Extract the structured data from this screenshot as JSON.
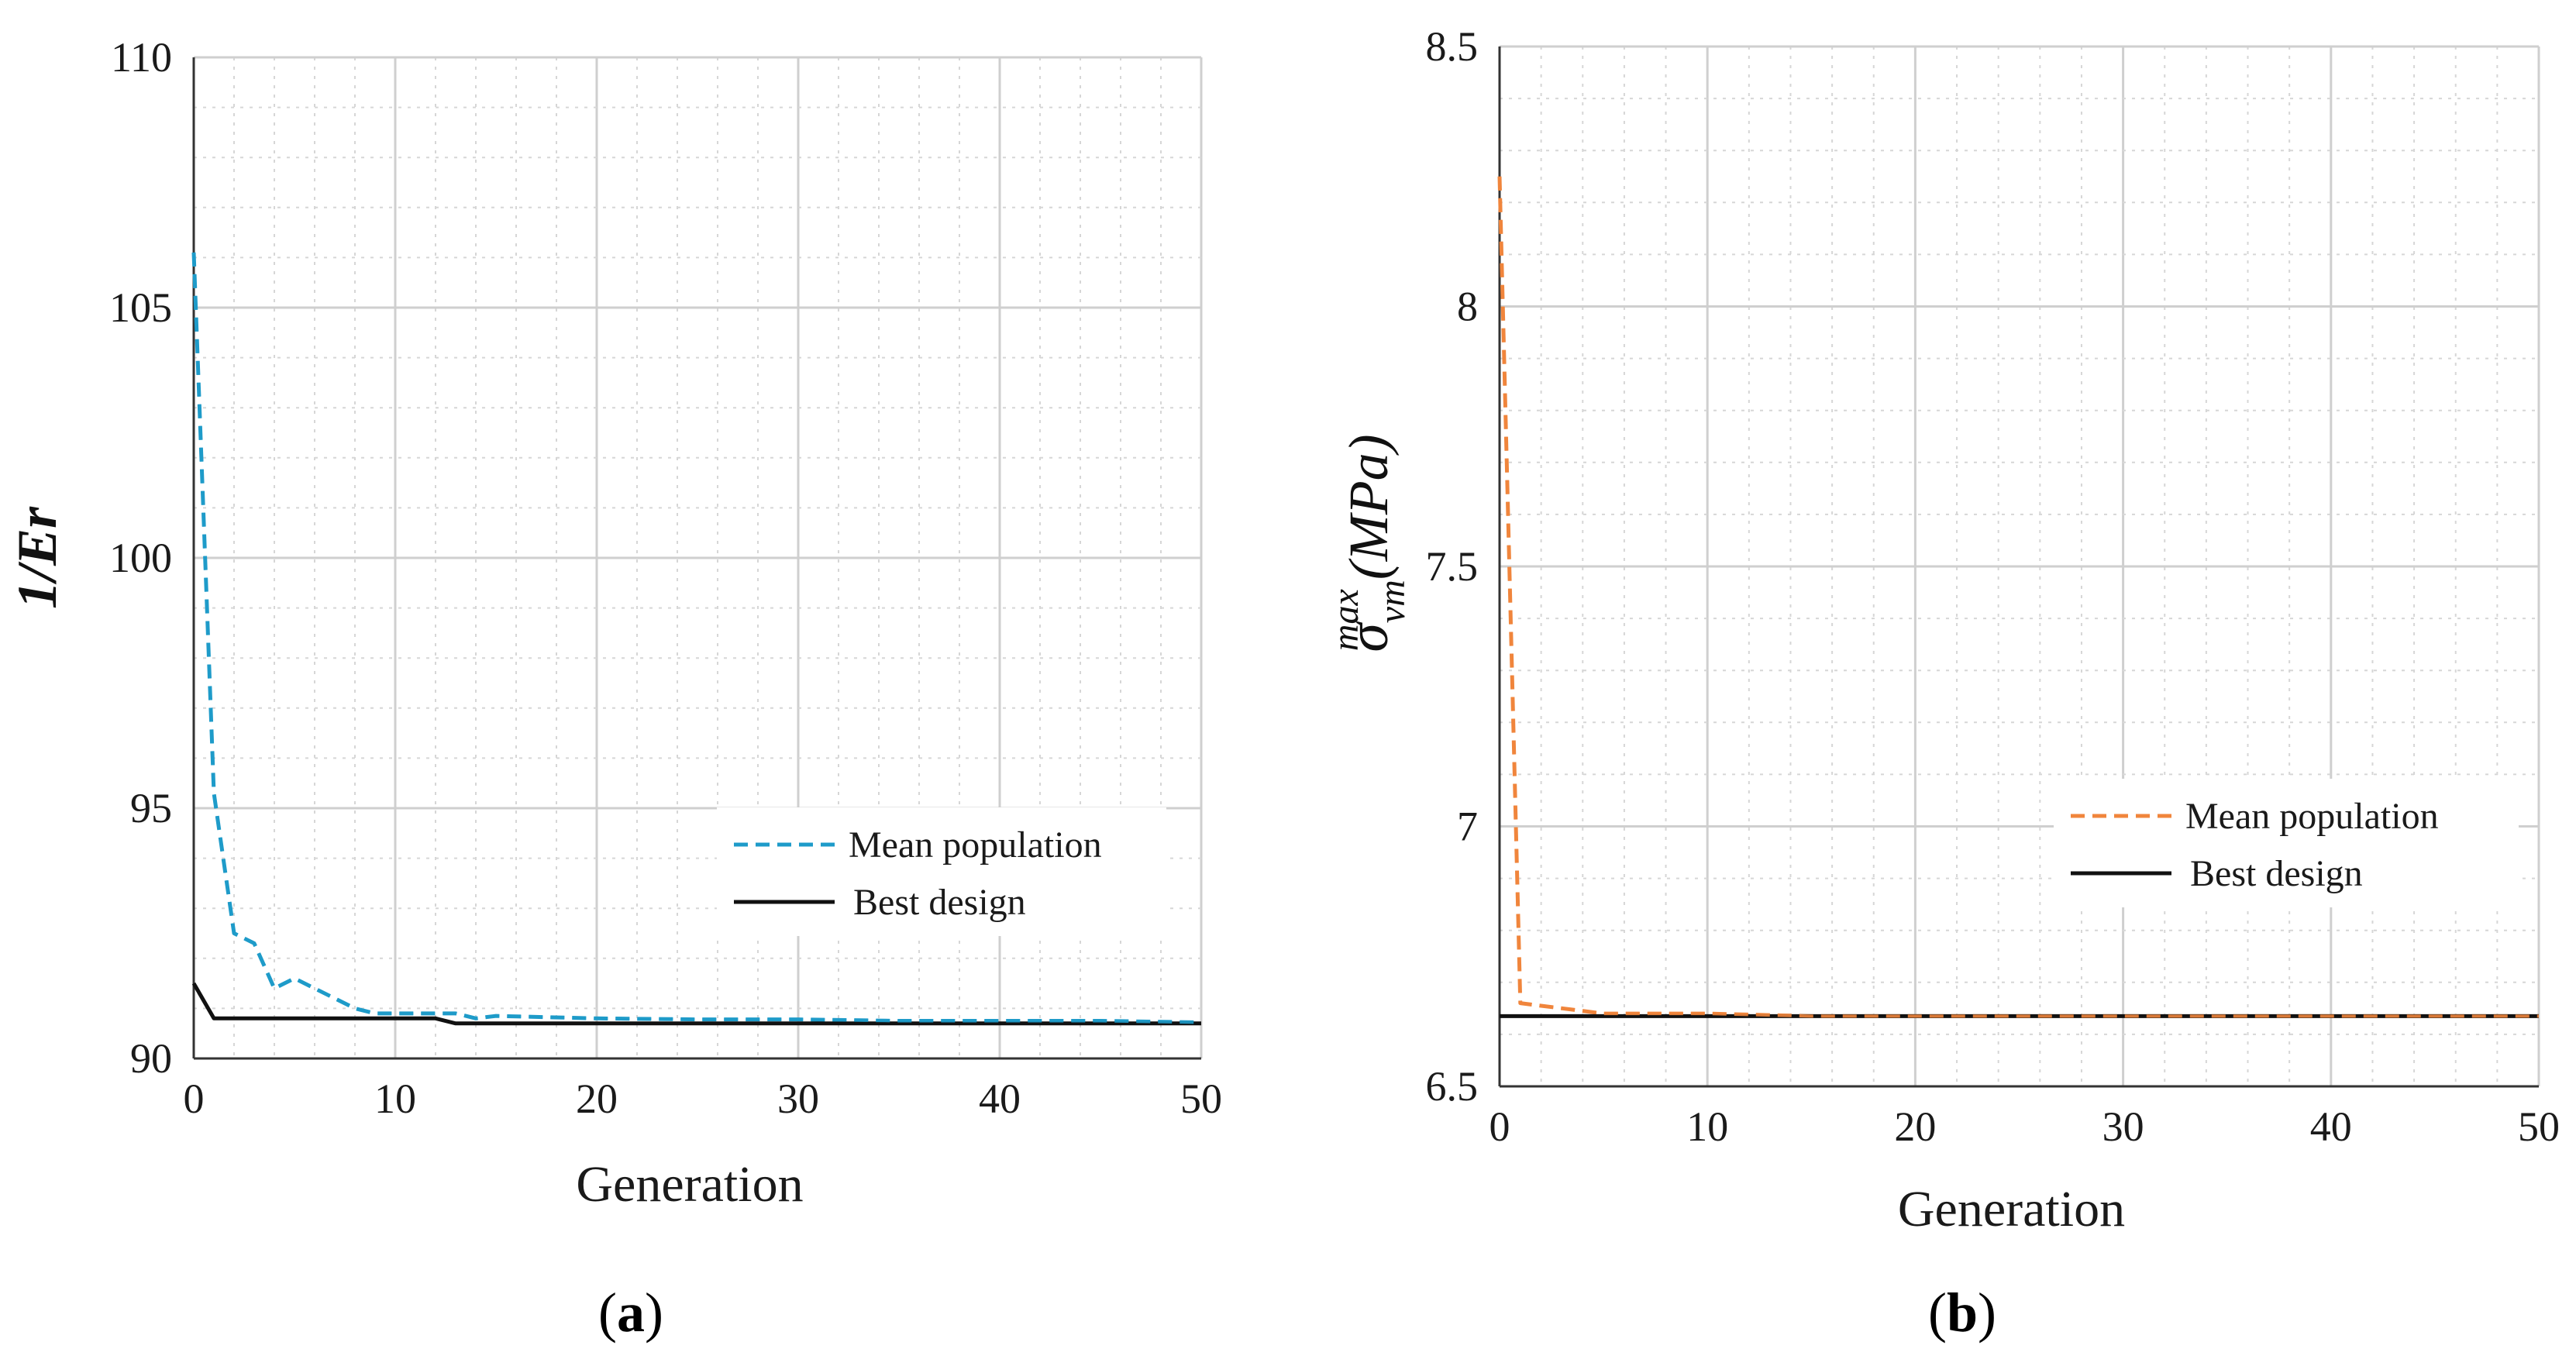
{
  "chart_data": [
    {
      "type": "line",
      "panel_label": "(a)",
      "panel_letter": "a",
      "xlabel": "Generation",
      "ylabel": "1/Er",
      "xlim": [
        0,
        50
      ],
      "ylim": [
        90,
        110
      ],
      "xticks": [
        0,
        10,
        20,
        30,
        40,
        50
      ],
      "yticks": [
        90,
        95,
        100,
        105,
        110
      ],
      "grid": true,
      "legend_position": "center-right",
      "series": [
        {
          "name": "Mean population",
          "color": "#1e9bc9",
          "style": "dashed",
          "x": [
            0,
            1,
            2,
            3,
            4,
            5,
            6,
            7,
            8,
            9,
            10,
            11,
            12,
            13,
            14,
            15,
            20,
            25,
            30,
            35,
            40,
            45,
            50
          ],
          "y": [
            106.1,
            95.3,
            92.5,
            92.3,
            91.4,
            91.6,
            91.4,
            91.2,
            91.0,
            90.9,
            90.9,
            90.9,
            90.9,
            90.9,
            90.8,
            90.85,
            90.8,
            90.78,
            90.78,
            90.75,
            90.75,
            90.75,
            90.72
          ]
        },
        {
          "name": "Best design",
          "color": "#111111",
          "style": "solid",
          "x": [
            0,
            1,
            12,
            13,
            50
          ],
          "y": [
            91.5,
            90.8,
            90.8,
            90.7,
            90.7
          ]
        }
      ]
    },
    {
      "type": "line",
      "panel_label": "(b)",
      "panel_letter": "b",
      "xlabel": "Generation",
      "ylabel": "σ_vm^max (MPa)",
      "ylabel_parts": {
        "sigma": "σ",
        "sub": "vm",
        "sup": "max",
        "unit": "(MPa)"
      },
      "xlim": [
        0,
        50
      ],
      "ylim": [
        6.5,
        8.5
      ],
      "xticks": [
        0,
        10,
        20,
        30,
        40,
        50
      ],
      "yticks": [
        6.5,
        7,
        7.5,
        8,
        8.5
      ],
      "grid": true,
      "legend_position": "center-right",
      "series": [
        {
          "name": "Mean population",
          "color": "#f0853c",
          "style": "dashed",
          "x": [
            0,
            1,
            2,
            3,
            5,
            8,
            10,
            15,
            20,
            30,
            40,
            50
          ],
          "y": [
            8.25,
            6.66,
            6.655,
            6.65,
            6.64,
            6.64,
            6.64,
            6.635,
            6.635,
            6.635,
            6.635,
            6.635
          ]
        },
        {
          "name": "Best design",
          "color": "#111111",
          "style": "solid",
          "x": [
            0,
            50
          ],
          "y": [
            6.635,
            6.635
          ]
        }
      ]
    }
  ]
}
